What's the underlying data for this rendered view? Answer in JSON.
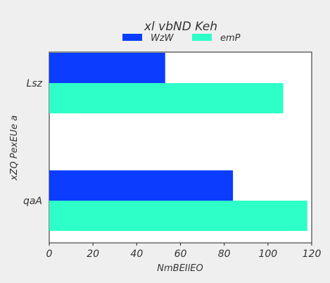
{
  "chart_data": {
    "type": "bar",
    "orientation": "horizontal",
    "title": "xl vbND  Keh",
    "xlabel": "NmBEIlEO",
    "ylabel": "xZQ PexEUe a",
    "categories": [
      "Lsz",
      "qaA"
    ],
    "series": [
      {
        "name": "WzW",
        "color": "#0a3dff",
        "values": [
          53,
          84
        ]
      },
      {
        "name": "emP",
        "color": "#2effc8",
        "values": [
          107,
          118
        ]
      }
    ],
    "xlim": [
      0,
      120
    ],
    "xticks": [
      "0",
      "20",
      "40",
      "60",
      "80",
      "100",
      "120"
    ],
    "grid": false,
    "legend_position": "top-center"
  }
}
